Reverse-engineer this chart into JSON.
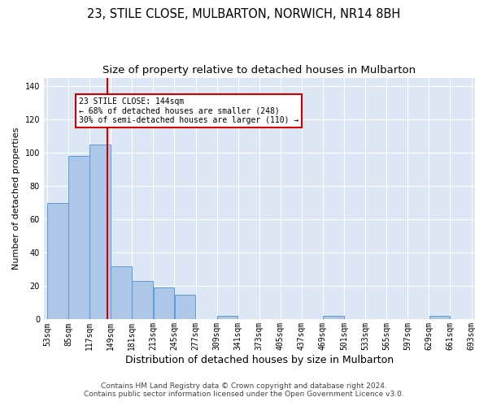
{
  "title": "23, STILE CLOSE, MULBARTON, NORWICH, NR14 8BH",
  "subtitle": "Size of property relative to detached houses in Mulbarton",
  "xlabel": "Distribution of detached houses by size in Mulbarton",
  "ylabel": "Number of detached properties",
  "bar_color": "#aec6e8",
  "bar_edge_color": "#5b9bd5",
  "background_color": "#dce6f5",
  "grid_color": "#ffffff",
  "vline_color": "#cc0000",
  "vline_x": 144,
  "annotation_text": "23 STILE CLOSE: 144sqm\n← 68% of detached houses are smaller (248)\n30% of semi-detached houses are larger (110) →",
  "annotation_box_color": "#ffffff",
  "annotation_box_edge": "#cc0000",
  "footer_line1": "Contains HM Land Registry data © Crown copyright and database right 2024.",
  "footer_line2": "Contains public sector information licensed under the Open Government Licence v3.0.",
  "bin_edges": [
    53,
    85,
    117,
    149,
    181,
    213,
    245,
    277,
    309,
    341,
    373,
    405,
    437,
    469,
    501,
    533,
    565,
    597,
    629,
    661,
    693
  ],
  "bar_heights": [
    70,
    98,
    105,
    32,
    23,
    19,
    15,
    0,
    2,
    0,
    0,
    0,
    0,
    2,
    0,
    0,
    0,
    0,
    2,
    0
  ],
  "ylim": [
    0,
    145
  ],
  "yticks": [
    0,
    20,
    40,
    60,
    80,
    100,
    120,
    140
  ],
  "title_fontsize": 10.5,
  "subtitle_fontsize": 9.5,
  "xlabel_fontsize": 9,
  "ylabel_fontsize": 8,
  "tick_fontsize": 7,
  "footer_fontsize": 6.5,
  "fig_width": 6.0,
  "fig_height": 5.0,
  "dpi": 100
}
